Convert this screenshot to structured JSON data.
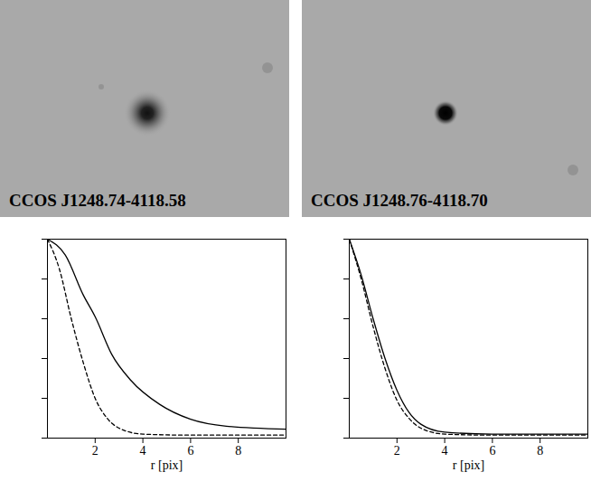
{
  "chart_data": [
    {
      "type": "line",
      "title": "CCOS J1248.74-4118.58",
      "x_label": "r [pix]",
      "xlim": [
        0,
        10
      ],
      "xticks": [
        2,
        4,
        6,
        8
      ],
      "ylim": [
        0,
        1
      ],
      "yticks": [
        0,
        0.2,
        0.4,
        0.6,
        0.8,
        1.0
      ],
      "tick_labels": "x",
      "series": [
        {
          "color": "#000000",
          "line_style": "solid",
          "x": [
            0,
            0.75,
            1.5,
            2,
            2.7,
            3.5,
            4.7,
            6,
            7.5,
            10
          ],
          "values": [
            1.0,
            0.92,
            0.72,
            0.61,
            0.42,
            0.29,
            0.17,
            0.095,
            0.06,
            0.045
          ]
        },
        {
          "color": "#000000",
          "line_style": "dashed",
          "x": [
            0,
            0.5,
            1,
            1.5,
            2,
            2.5,
            3,
            4,
            6,
            10
          ],
          "values": [
            1.0,
            0.85,
            0.6,
            0.38,
            0.2,
            0.1,
            0.05,
            0.02,
            0.015,
            0.015
          ]
        }
      ]
    },
    {
      "type": "line",
      "title": "CCOS J1248.76-4118.70",
      "x_label": "r [pix]",
      "xlim": [
        0,
        10
      ],
      "xticks": [
        2,
        4,
        6,
        8
      ],
      "ylim": [
        0,
        1
      ],
      "yticks": [
        0,
        0.2,
        0.4,
        0.6,
        0.8,
        1.0
      ],
      "tick_labels": "x",
      "series": [
        {
          "color": "#000000",
          "line_style": "solid",
          "x": [
            0,
            0.5,
            1,
            1.5,
            2,
            2.5,
            3,
            4,
            6,
            10
          ],
          "values": [
            1.0,
            0.82,
            0.6,
            0.4,
            0.24,
            0.13,
            0.07,
            0.03,
            0.02,
            0.02
          ]
        },
        {
          "color": "#000000",
          "line_style": "dashed",
          "x": [
            0,
            0.5,
            1,
            1.5,
            2,
            2.5,
            3,
            4,
            6,
            10
          ],
          "values": [
            1.0,
            0.8,
            0.56,
            0.35,
            0.19,
            0.1,
            0.05,
            0.02,
            0.015,
            0.015
          ]
        }
      ]
    }
  ]
}
